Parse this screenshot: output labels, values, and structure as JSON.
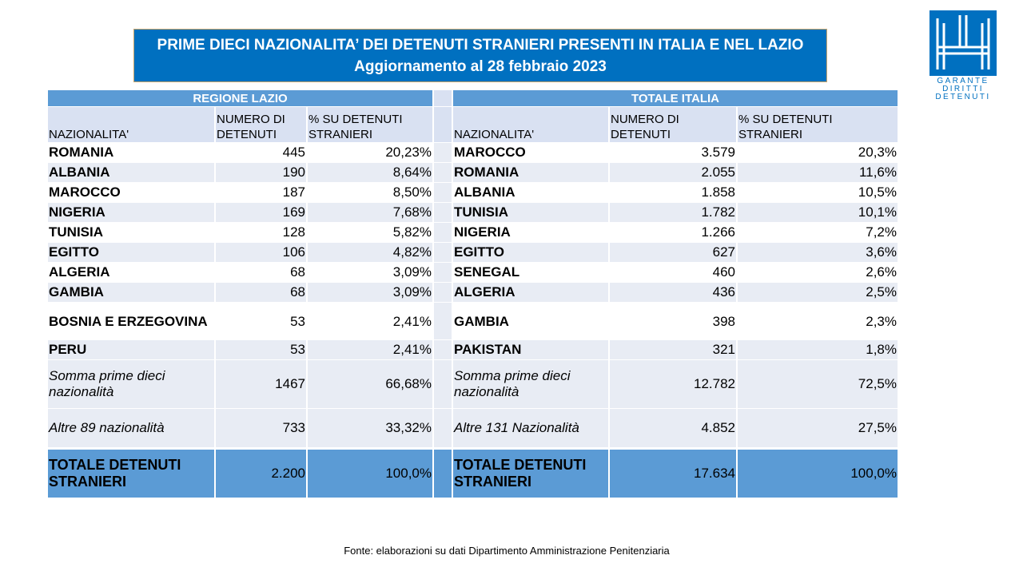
{
  "title": {
    "line1": "PRIME DIECI NAZIONALITA’ DEI DETENUTI STRANIERI PRESENTI IN ITALIA E NEL LAZIO",
    "line2": "Aggiornamento al 28 febbraio 2023"
  },
  "logo": {
    "icon": "garante-logo-icon",
    "line1": "GARANTE",
    "line2": "DIRITTI",
    "line3": "DETENUTI",
    "color": "#0070c0"
  },
  "table": {
    "lazio_header": "REGIONE LAZIO",
    "italia_header": "TOTALE ITALIA",
    "col_nationality": "NAZIONALITA'",
    "col_count": "NUMERO DI DETENUTI",
    "col_pct": "% SU DETENUTI STRANIERI",
    "rows": [
      {
        "lazio_name": "ROMANIA",
        "lazio_count": "445",
        "lazio_pct": "20,23%",
        "italia_name": "MAROCCO",
        "italia_count": "3.579",
        "italia_pct": "20,3%"
      },
      {
        "lazio_name": "ALBANIA",
        "lazio_count": "190",
        "lazio_pct": "8,64%",
        "italia_name": "ROMANIA",
        "italia_count": "2.055",
        "italia_pct": "11,6%"
      },
      {
        "lazio_name": "MAROCCO",
        "lazio_count": "187",
        "lazio_pct": "8,50%",
        "italia_name": "ALBANIA",
        "italia_count": "1.858",
        "italia_pct": "10,5%"
      },
      {
        "lazio_name": "NIGERIA",
        "lazio_count": "169",
        "lazio_pct": "7,68%",
        "italia_name": "TUNISIA",
        "italia_count": "1.782",
        "italia_pct": "10,1%"
      },
      {
        "lazio_name": "TUNISIA",
        "lazio_count": "128",
        "lazio_pct": "5,82%",
        "italia_name": "NIGERIA",
        "italia_count": "1.266",
        "italia_pct": "7,2%"
      },
      {
        "lazio_name": "EGITTO",
        "lazio_count": "106",
        "lazio_pct": "4,82%",
        "italia_name": "EGITTO",
        "italia_count": "627",
        "italia_pct": "3,6%"
      },
      {
        "lazio_name": "ALGERIA",
        "lazio_count": "68",
        "lazio_pct": "3,09%",
        "italia_name": "SENEGAL",
        "italia_count": "460",
        "italia_pct": "2,6%"
      },
      {
        "lazio_name": "GAMBIA",
        "lazio_count": "68",
        "lazio_pct": "3,09%",
        "italia_name": "ALGERIA",
        "italia_count": "436",
        "italia_pct": "2,5%"
      },
      {
        "lazio_name": "BOSNIA E ERZEGOVINA",
        "lazio_count": "53",
        "lazio_pct": "2,41%",
        "italia_name": "GAMBIA",
        "italia_count": "398",
        "italia_pct": "2,3%"
      },
      {
        "lazio_name": "PERU",
        "lazio_count": "53",
        "lazio_pct": "2,41%",
        "italia_name": "PAKISTAN",
        "italia_count": "321",
        "italia_pct": "1,8%"
      }
    ],
    "sum": {
      "lazio_label": "Somma prime dieci nazionalità",
      "lazio_count": "1467",
      "lazio_pct": "66,68%",
      "italia_label": "Somma prime dieci nazionalità",
      "italia_count": "12.782",
      "italia_pct": "72,5%"
    },
    "other": {
      "lazio_label": "Altre 89 nazionalità",
      "lazio_count": "733",
      "lazio_pct": "33,32%",
      "italia_label": "Altre 131 Nazionalità",
      "italia_count": "4.852",
      "italia_pct": "27,5%"
    },
    "total": {
      "lazio_label": "TOTALE DETENUTI STRANIERI",
      "lazio_count": "2.200",
      "lazio_pct": "100,0%",
      "italia_label": "TOTALE DETENUTI STRANIERI",
      "italia_count": "17.634",
      "italia_pct": "100,0%"
    }
  },
  "source": "Fonte: elaborazioni su dati Dipartimento Amministrazione Penitenziaria",
  "colors": {
    "title_bg": "#0070c0",
    "header_bg": "#5b9bd5",
    "subheader_bg": "#d9e1f2",
    "row_alt_bg": "#e8ecf4"
  }
}
